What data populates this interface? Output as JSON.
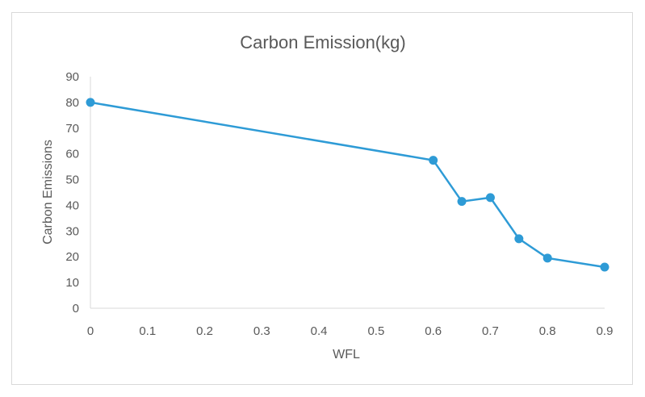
{
  "chart_data": {
    "type": "line",
    "title": "Carbon Emission(kg)",
    "xlabel": "WFL",
    "ylabel": "Carbon Emissions",
    "xlim": [
      0,
      0.9
    ],
    "ylim": [
      0,
      90
    ],
    "xticks": [
      "0",
      "0.1",
      "0.2",
      "0.3",
      "0.4",
      "0.5",
      "0.6",
      "0.7",
      "0.8",
      "0.9"
    ],
    "yticks": [
      "0",
      "10",
      "20",
      "30",
      "40",
      "50",
      "60",
      "70",
      "80",
      "90"
    ],
    "grid": false,
    "color": "#2e9bd6",
    "series": [
      {
        "x": [
          0,
          0.6,
          0.65,
          0.7,
          0.75,
          0.8,
          0.9
        ],
        "y": [
          80,
          57.5,
          41.5,
          43,
          27,
          19.5,
          16
        ]
      }
    ]
  }
}
